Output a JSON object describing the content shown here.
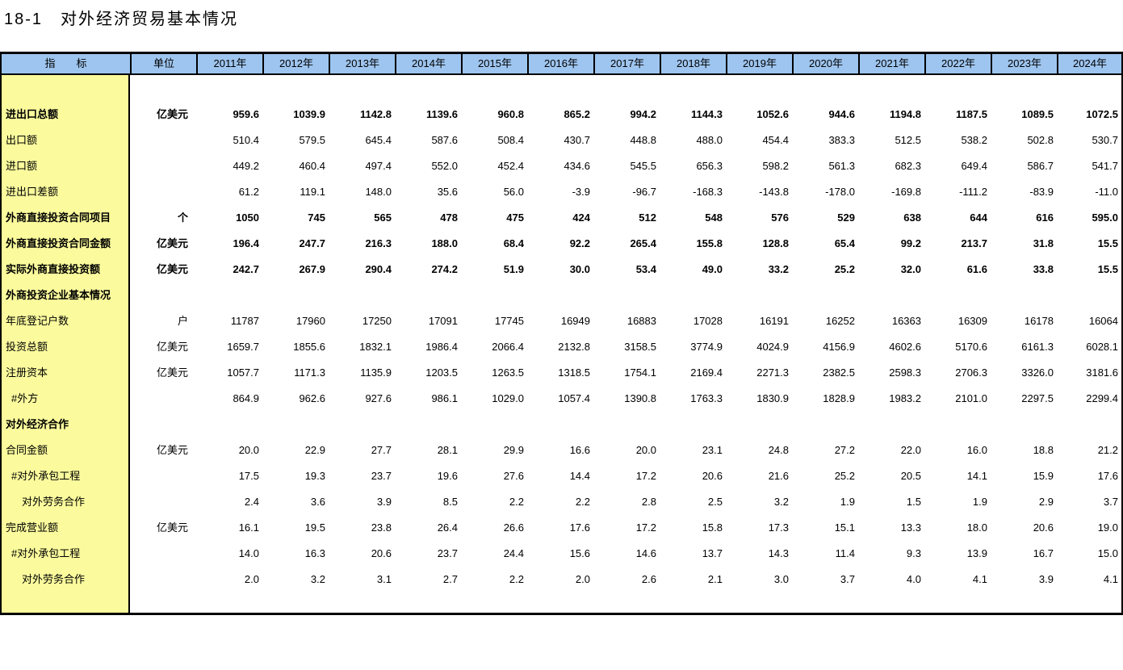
{
  "title": "18-1　对外经济贸易基本情况",
  "colors": {
    "header_bg": "#9EC5EF",
    "indicator_col_bg": "#FBFB9D",
    "border": "#000000",
    "text": "#000000"
  },
  "table": {
    "indicator_header": "指　　标",
    "unit_header": "单位",
    "year_headers": [
      "2011年",
      "2012年",
      "2013年",
      "2014年",
      "2015年",
      "2016年",
      "2017年",
      "2018年",
      "2019年",
      "2020年",
      "2021年",
      "2022年",
      "2023年",
      "2024年"
    ],
    "rows": [
      {
        "label": "进出口总额",
        "unit": "亿美元",
        "bold": true,
        "indent": 0,
        "values": [
          "959.6",
          "1039.9",
          "1142.8",
          "1139.6",
          "960.8",
          "865.2",
          "994.2",
          "1144.3",
          "1052.6",
          "944.6",
          "1194.8",
          "1187.5",
          "1089.5",
          "1072.5"
        ]
      },
      {
        "label": "出口额",
        "unit": "",
        "bold": false,
        "indent": 0,
        "values": [
          "510.4",
          "579.5",
          "645.4",
          "587.6",
          "508.4",
          "430.7",
          "448.8",
          "488.0",
          "454.4",
          "383.3",
          "512.5",
          "538.2",
          "502.8",
          "530.7"
        ]
      },
      {
        "label": "进口额",
        "unit": "",
        "bold": false,
        "indent": 0,
        "values": [
          "449.2",
          "460.4",
          "497.4",
          "552.0",
          "452.4",
          "434.6",
          "545.5",
          "656.3",
          "598.2",
          "561.3",
          "682.3",
          "649.4",
          "586.7",
          "541.7"
        ]
      },
      {
        "label": "进出口差额",
        "unit": "",
        "bold": false,
        "indent": 0,
        "values": [
          "61.2",
          "119.1",
          "148.0",
          "35.6",
          "56.0",
          "-3.9",
          "-96.7",
          "-168.3",
          "-143.8",
          "-178.0",
          "-169.8",
          "-111.2",
          "-83.9",
          "-11.0"
        ]
      },
      {
        "label": "外商直接投资合同项目",
        "unit": "个",
        "bold": true,
        "indent": 0,
        "values": [
          "1050",
          "745",
          "565",
          "478",
          "475",
          "424",
          "512",
          "548",
          "576",
          "529",
          "638",
          "644",
          "616",
          "595.0"
        ]
      },
      {
        "label": "外商直接投资合同金额",
        "unit": "亿美元",
        "bold": true,
        "indent": 0,
        "values": [
          "196.4",
          "247.7",
          "216.3",
          "188.0",
          "68.4",
          "92.2",
          "265.4",
          "155.8",
          "128.8",
          "65.4",
          "99.2",
          "213.7",
          "31.8",
          "15.5"
        ]
      },
      {
        "label": "实际外商直接投资额",
        "unit": "亿美元",
        "bold": true,
        "indent": 0,
        "values": [
          "242.7",
          "267.9",
          "290.4",
          "274.2",
          "51.9",
          "30.0",
          "53.4",
          "49.0",
          "33.2",
          "25.2",
          "32.0",
          "61.6",
          "33.8",
          "15.5"
        ]
      },
      {
        "label": "外商投资企业基本情况",
        "unit": "",
        "bold": true,
        "indent": 0,
        "values": [
          "",
          "",
          "",
          "",
          "",
          "",
          "",
          "",
          "",
          "",
          "",
          "",
          "",
          ""
        ]
      },
      {
        "label": "年底登记户数",
        "unit": "户",
        "bold": false,
        "indent": 0,
        "values": [
          "11787",
          "17960",
          "17250",
          "17091",
          "17745",
          "16949",
          "16883",
          "17028",
          "16191",
          "16252",
          "16363",
          "16309",
          "16178",
          "16064"
        ]
      },
      {
        "label": "投资总额",
        "unit": "亿美元",
        "bold": false,
        "indent": 0,
        "values": [
          "1659.7",
          "1855.6",
          "1832.1",
          "1986.4",
          "2066.4",
          "2132.8",
          "3158.5",
          "3774.9",
          "4024.9",
          "4156.9",
          "4602.6",
          "5170.6",
          "6161.3",
          "6028.1"
        ]
      },
      {
        "label": "注册资本",
        "unit": "亿美元",
        "bold": false,
        "indent": 0,
        "values": [
          "1057.7",
          "1171.3",
          "1135.9",
          "1203.5",
          "1263.5",
          "1318.5",
          "1754.1",
          "2169.4",
          "2271.3",
          "2382.5",
          "2598.3",
          "2706.3",
          "3326.0",
          "3181.6"
        ]
      },
      {
        "label": "#外方",
        "unit": "",
        "bold": false,
        "indent": 1,
        "values": [
          "864.9",
          "962.6",
          "927.6",
          "986.1",
          "1029.0",
          "1057.4",
          "1390.8",
          "1763.3",
          "1830.9",
          "1828.9",
          "1983.2",
          "2101.0",
          "2297.5",
          "2299.4"
        ]
      },
      {
        "label": "对外经济合作",
        "unit": "",
        "bold": true,
        "indent": 0,
        "values": [
          "",
          "",
          "",
          "",
          "",
          "",
          "",
          "",
          "",
          "",
          "",
          "",
          "",
          ""
        ]
      },
      {
        "label": "合同金额",
        "unit": "亿美元",
        "bold": false,
        "indent": 0,
        "values": [
          "20.0",
          "22.9",
          "27.7",
          "28.1",
          "29.9",
          "16.6",
          "20.0",
          "23.1",
          "24.8",
          "27.2",
          "22.0",
          "16.0",
          "18.8",
          "21.2"
        ]
      },
      {
        "label": "#对外承包工程",
        "unit": "",
        "bold": false,
        "indent": 1,
        "values": [
          "17.5",
          "19.3",
          "23.7",
          "19.6",
          "27.6",
          "14.4",
          "17.2",
          "20.6",
          "21.6",
          "25.2",
          "20.5",
          "14.1",
          "15.9",
          "17.6"
        ]
      },
      {
        "label": "对外劳务合作",
        "unit": "",
        "bold": false,
        "indent": 2,
        "values": [
          "2.4",
          "3.6",
          "3.9",
          "8.5",
          "2.2",
          "2.2",
          "2.8",
          "2.5",
          "3.2",
          "1.9",
          "1.5",
          "1.9",
          "2.9",
          "3.7"
        ]
      },
      {
        "label": "完成营业额",
        "unit": "亿美元",
        "bold": false,
        "indent": 0,
        "values": [
          "16.1",
          "19.5",
          "23.8",
          "26.4",
          "26.6",
          "17.6",
          "17.2",
          "15.8",
          "17.3",
          "15.1",
          "13.3",
          "18.0",
          "20.6",
          "19.0"
        ]
      },
      {
        "label": "#对外承包工程",
        "unit": "",
        "bold": false,
        "indent": 1,
        "values": [
          "14.0",
          "16.3",
          "20.6",
          "23.7",
          "24.4",
          "15.6",
          "14.6",
          "13.7",
          "14.3",
          "11.4",
          "9.3",
          "13.9",
          "16.7",
          "15.0"
        ]
      },
      {
        "label": "对外劳务合作",
        "unit": "",
        "bold": false,
        "indent": 2,
        "values": [
          "2.0",
          "3.2",
          "3.1",
          "2.7",
          "2.2",
          "2.0",
          "2.6",
          "2.1",
          "3.0",
          "3.7",
          "4.0",
          "4.1",
          "3.9",
          "4.1"
        ]
      }
    ]
  }
}
